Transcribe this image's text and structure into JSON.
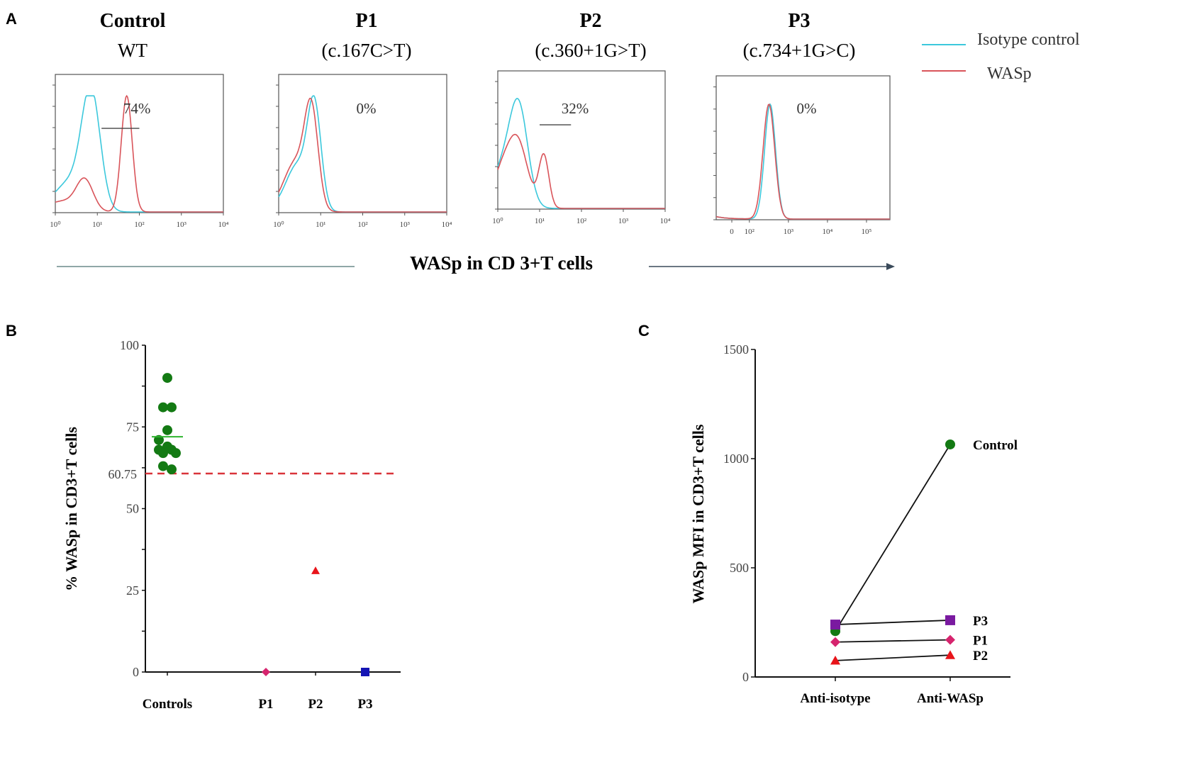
{
  "panel_labels": [
    "A",
    "B",
    "C"
  ],
  "chart_data": [
    {
      "type": "histogram-overlay",
      "panel": "A",
      "xlabel": "WASp in CD 3+T cells",
      "legend": [
        {
          "name": "Isotype control",
          "color": "#3cc8dc"
        },
        {
          "name": "WASp",
          "color": "#d9545a"
        }
      ],
      "legend_placement": "top-right",
      "plots": [
        {
          "title": "Control",
          "subtitle": "WT",
          "percent": "74%",
          "gate": [
            1.1,
            2.0
          ],
          "ticks": [
            "10⁰",
            "10¹",
            "10²",
            "10³",
            "10⁴"
          ],
          "tick_values": [
            0,
            1,
            2,
            3,
            4
          ],
          "xlim": [
            0,
            4
          ],
          "isotype": [
            [
              0.85,
              0.22,
              1.0
            ],
            [
              0.35,
              0.35,
              0.25
            ]
          ],
          "wasp": [
            [
              1.7,
              0.13,
              1.0
            ],
            [
              0.7,
              0.2,
              0.27
            ],
            [
              0.2,
              0.3,
              0.08
            ]
          ]
        },
        {
          "title": "P1",
          "subtitle": "(c.167C>T)",
          "percent": "0%",
          "gate": null,
          "ticks": [
            "10⁰",
            "10¹",
            "10²",
            "10³",
            "10⁴"
          ],
          "tick_values": [
            0,
            1,
            2,
            3,
            4
          ],
          "xlim": [
            0,
            4
          ],
          "isotype": [
            [
              0.85,
              0.16,
              0.85
            ],
            [
              0.45,
              0.28,
              0.4
            ]
          ],
          "wasp": [
            [
              0.78,
              0.16,
              0.8
            ],
            [
              0.4,
              0.28,
              0.42
            ]
          ]
        },
        {
          "title": "P2",
          "subtitle": "(c.360+1G>T)",
          "percent": "32%",
          "gate": [
            1.0,
            1.75
          ],
          "ticks": [
            "10⁰",
            "10¹",
            "10²",
            "10³",
            "10⁴"
          ],
          "tick_values": [
            0,
            1,
            2,
            3,
            4
          ],
          "xlim": [
            0,
            4
          ],
          "isotype": [
            [
              0.5,
              0.22,
              0.85
            ],
            [
              0.1,
              0.25,
              0.3
            ]
          ],
          "wasp": [
            [
              0.45,
              0.25,
              0.6
            ],
            [
              1.1,
              0.12,
              0.45
            ],
            [
              0.05,
              0.2,
              0.2
            ]
          ]
        },
        {
          "title": "P3",
          "subtitle": "(c.734+1G>C)",
          "percent": "0%",
          "gate": null,
          "ticks": [
            "0",
            "10²",
            "10³",
            "10⁴",
            "10⁵"
          ],
          "tick_values": [
            1.55,
            2,
            3,
            4,
            5
          ],
          "xlim": [
            1.15,
            5.6
          ],
          "isotype": [
            [
              2.53,
              0.14,
              0.95
            ]
          ],
          "wasp": [
            [
              2.5,
              0.15,
              0.95
            ]
          ]
        }
      ]
    },
    {
      "type": "scatter",
      "panel": "B",
      "ylabel": "% WASp in CD3+T cells",
      "ylim": [
        0,
        100
      ],
      "yticks": [
        "0",
        "25",
        "50",
        "75",
        "100"
      ],
      "categories": [
        "Controls",
        "P1",
        "P2",
        "P3"
      ],
      "threshold": {
        "value": 60.75,
        "label": "60.75",
        "color": "#d9343a"
      },
      "series": [
        {
          "name": "Controls",
          "marker": "circle",
          "color": "#137a13",
          "mean": 72,
          "values": [
            90,
            81,
            81,
            74,
            71,
            69,
            68,
            68,
            67,
            67,
            63,
            62
          ]
        },
        {
          "name": "P1",
          "marker": "diamond",
          "color": "#d6246e",
          "values": [
            0
          ]
        },
        {
          "name": "P2",
          "marker": "triangle",
          "color": "#e8141a",
          "values": [
            31
          ]
        },
        {
          "name": "P3",
          "marker": "square",
          "color": "#1414b4",
          "values": [
            0
          ]
        }
      ]
    },
    {
      "type": "line",
      "panel": "C",
      "ylabel": "WASp MFI  in CD3+T cells",
      "ylim": [
        0,
        1500
      ],
      "yticks": [
        "0",
        "500",
        "1000",
        "1500"
      ],
      "categories": [
        "Anti-isotype",
        "Anti-WASp"
      ],
      "series": [
        {
          "name": "Control",
          "marker": "circle",
          "color": "#137a13",
          "values": [
            210,
            1065
          ]
        },
        {
          "name": "P3",
          "marker": "square",
          "color": "#7a1aa0",
          "values": [
            240,
            260
          ]
        },
        {
          "name": "P1",
          "marker": "diamond",
          "color": "#d6246e",
          "values": [
            160,
            170
          ]
        },
        {
          "name": "P2",
          "marker": "triangle",
          "color": "#e8141a",
          "values": [
            75,
            100
          ]
        }
      ]
    }
  ]
}
